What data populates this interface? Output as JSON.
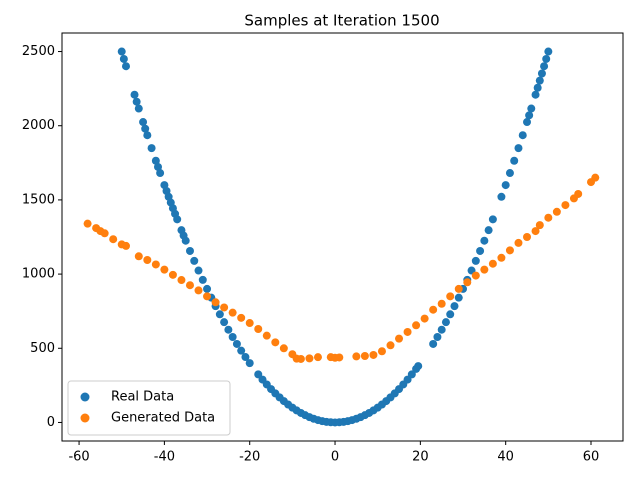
{
  "chart_data": {
    "type": "scatter",
    "title": "Samples at Iteration 1500",
    "series": [
      {
        "name": "Real Data",
        "color": "#1f77b4",
        "x": [
          -50,
          -49.5,
          -49,
          -47,
          -46.5,
          -46,
          -45,
          -44.5,
          -44,
          -43,
          -42,
          -41.5,
          -41,
          -40,
          -39.5,
          -39,
          -38.5,
          -38,
          -37.5,
          -37,
          -36,
          -35.5,
          -35,
          -34,
          -33,
          -32,
          -31,
          -30,
          -29,
          -28,
          -27,
          -26,
          -25,
          -24,
          -23,
          -22,
          -21,
          -20,
          -18,
          -17,
          -16,
          -15,
          -14,
          -13,
          -12,
          -11,
          -10,
          -9,
          -8,
          -7,
          -6,
          -5,
          -4,
          -3,
          -2,
          -1,
          0,
          1,
          2,
          3,
          4,
          5,
          6,
          7,
          8,
          9,
          10,
          11,
          12,
          13,
          14,
          15,
          16,
          17,
          18,
          19,
          19.5,
          23,
          24,
          25,
          26,
          27,
          28,
          29,
          30,
          31,
          32,
          33,
          34,
          35,
          36,
          37,
          39,
          40,
          41,
          42,
          43,
          44,
          45,
          45.5,
          46,
          47,
          47.5,
          48,
          48.5,
          49,
          49.5,
          50
        ],
        "values": [
          2500,
          2450,
          2401,
          2209,
          2162,
          2116,
          2025,
          1980,
          1936,
          1849,
          1764,
          1722,
          1681,
          1600,
          1560,
          1521,
          1482,
          1444,
          1406,
          1369,
          1296,
          1260,
          1225,
          1156,
          1089,
          1024,
          961,
          900,
          841,
          784,
          729,
          676,
          625,
          576,
          529,
          484,
          441,
          400,
          324,
          289,
          256,
          225,
          196,
          169,
          144,
          121,
          100,
          81,
          64,
          49,
          36,
          25,
          16,
          9,
          4,
          1,
          0,
          1,
          4,
          9,
          16,
          25,
          36,
          49,
          64,
          81,
          100,
          121,
          144,
          169,
          196,
          225,
          256,
          289,
          324,
          361,
          380,
          529,
          576,
          625,
          676,
          729,
          784,
          841,
          900,
          961,
          1024,
          1089,
          1156,
          1225,
          1296,
          1369,
          1521,
          1600,
          1681,
          1764,
          1849,
          1936,
          2025,
          2070,
          2116,
          2209,
          2256,
          2304,
          2352,
          2401,
          2450,
          2500
        ]
      },
      {
        "name": "Generated Data",
        "color": "#ff7f0e",
        "x": [
          -58,
          -56,
          -55,
          -54,
          -52,
          -50,
          -49,
          -46,
          -44,
          -42,
          -40,
          -38,
          -36,
          -34,
          -32,
          -30,
          -28,
          -26,
          -24,
          -22,
          -20,
          -18,
          -16,
          -14,
          -12,
          -10,
          -9,
          -8,
          -6,
          -4,
          -1,
          0,
          1,
          5,
          7,
          9,
          11,
          13,
          15,
          17,
          19,
          21,
          23,
          25,
          27,
          29,
          31,
          33,
          35,
          37,
          39,
          41,
          43,
          45,
          47,
          48,
          50,
          52,
          54,
          56,
          57,
          60,
          61
        ],
        "values": [
          1340,
          1310,
          1290,
          1275,
          1235,
          1200,
          1190,
          1120,
          1095,
          1065,
          1030,
          995,
          960,
          925,
          890,
          850,
          810,
          775,
          740,
          705,
          670,
          630,
          585,
          540,
          500,
          460,
          430,
          428,
          432,
          440,
          440,
          436,
          438,
          445,
          448,
          455,
          480,
          520,
          565,
          610,
          655,
          700,
          760,
          800,
          850,
          900,
          945,
          990,
          1030,
          1070,
          1110,
          1160,
          1210,
          1250,
          1290,
          1330,
          1380,
          1420,
          1465,
          1510,
          1540,
          1620,
          1650
        ]
      }
    ],
    "xlim": [
      -64,
      67.5
    ],
    "ylim": [
      -125,
      2625
    ],
    "xticks": [
      -60,
      -40,
      -20,
      0,
      20,
      40,
      60
    ],
    "yticks": [
      0,
      500,
      1000,
      1500,
      2000,
      2500
    ],
    "legend": "lower left"
  }
}
